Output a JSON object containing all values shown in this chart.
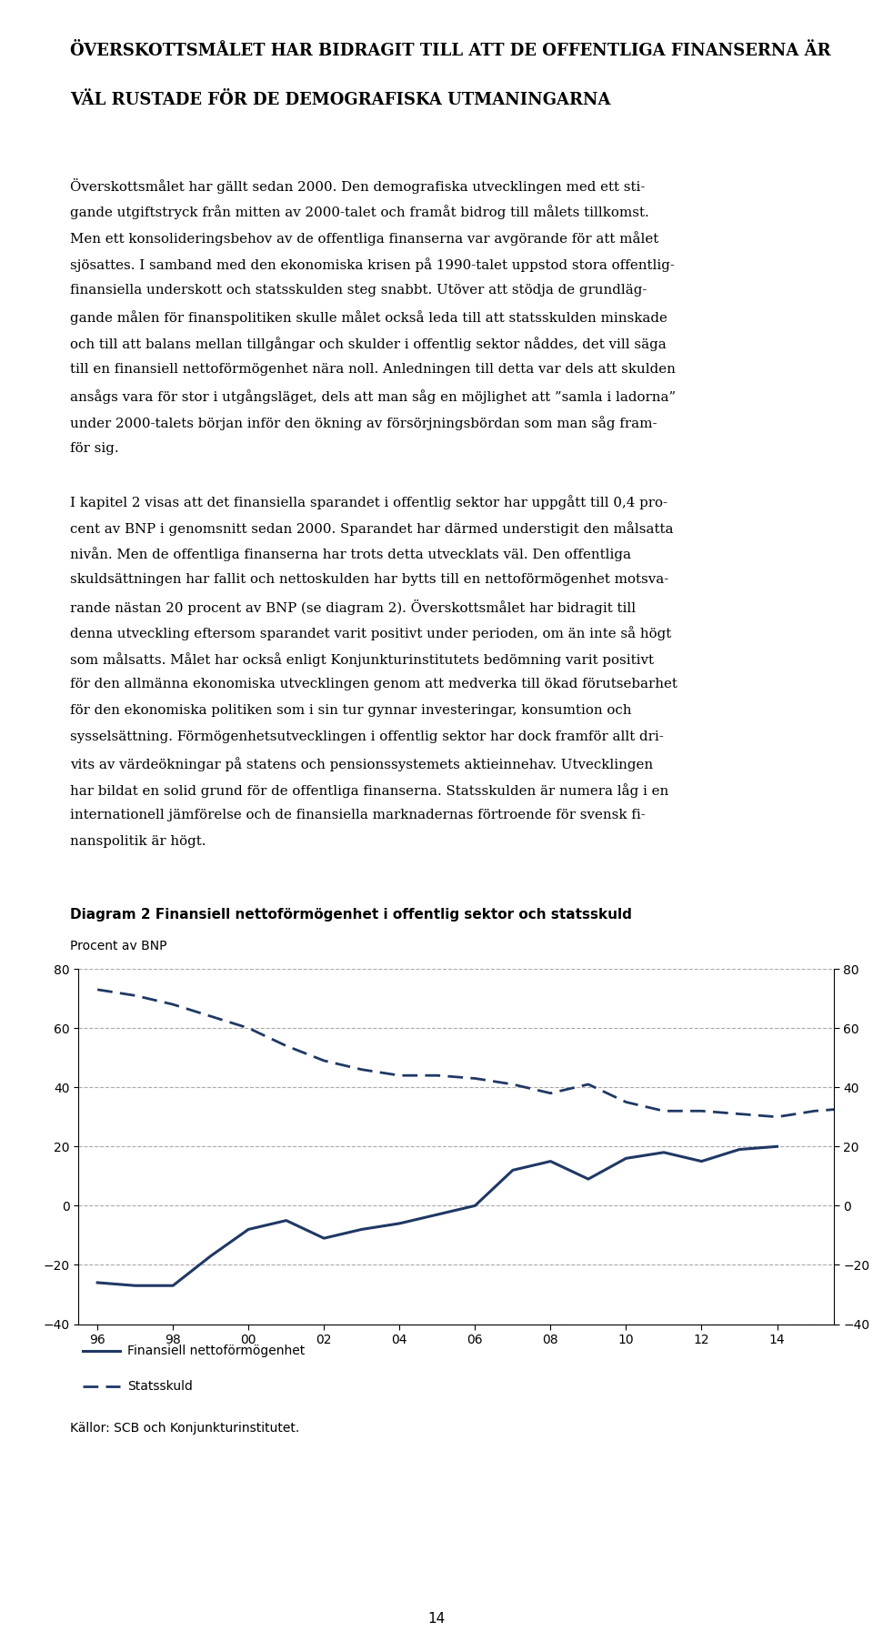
{
  "title_line1": "ÖVERSKOTTSMÅLET HAR BIDRAGIT TILL ATT DE OFFENTLIGA FINANSERNA ÄR",
  "title_line2": "VÄL RUSTADE FÖR DE DEMOGRAFISKA UTMANINGARNA",
  "body1_lines": [
    "Överskottsmålet har gällt sedan 2000. Den demografiska utvecklingen med ett sti-",
    "gande utgiftstryck från mitten av 2000-talet och framåt bidrog till målets tillkomst.",
    "Men ett konsolideringsbehov av de offentliga finanserna var avgörande för att målet",
    "sjösattes. I samband med den ekonomiska krisen på 1990-talet uppstod stora offentlig-",
    "finansiella underskott och statsskulden steg snabbt. Utöver att stödja de grundläg-",
    "gande målen för finanspolitiken skulle målet också leda till att statsskulden minskade",
    "och till att balans mellan tillgångar och skulder i offentlig sektor nåddes, det vill säga",
    "till en finansiell nettoförmögenhet nära noll. Anledningen till detta var dels att skulden",
    "ansågs vara för stor i utgångsläget, dels att man såg en möjlighet att ”samla i ladorna”",
    "under 2000-talets början inför den ökning av försörjningsbördan som man såg fram-",
    "för sig."
  ],
  "body2_lines": [
    "I kapitel 2 visas att det finansiella sparandet i offentlig sektor har uppgått till 0,4 pro-",
    "cent av BNP i genomsnitt sedan 2000. Sparandet har därmed understigit den målsatta",
    "nivån. Men de offentliga finanserna har trots detta utvecklats väl. Den offentliga",
    "skuldsättningen har fallit och nettoskulden har bytts till en nettoförmögenhet motsva-",
    "rande nästan 20 procent av BNP (se diagram 2). Överskottsmålet har bidragit till",
    "denna utveckling eftersom sparandet varit positivt under perioden, om än inte så högt",
    "som målsatts. Målet har också enligt Konjunkturinstitutets bedömning varit positivt",
    "för den allmänna ekonomiska utvecklingen genom att medverka till ökad förutsebarhet",
    "för den ekonomiska politiken som i sin tur gynnar investeringar, konsumtion och",
    "sysselsättning. Förmögenhetsutvecklingen i offentlig sektor har dock framför allt dri-",
    "vits av värdeökningar på statens och pensionssystemets aktieinnehav. Utvecklingen",
    "har bildat en solid grund för de offentliga finanserna. Statsskulden är numera låg i en",
    "internationell jämförelse och de finansiella marknadernas förtroende för svensk fi-",
    "nanspolitik är högt."
  ],
  "diagram_title": "Diagram 2 Finansiell nettoförmögenhet i offentlig sektor och statsskuld",
  "diagram_ylabel": "Procent av BNP",
  "x_labels": [
    "96",
    "98",
    "00",
    "02",
    "04",
    "06",
    "08",
    "10",
    "12",
    "14"
  ],
  "x_tick_positions": [
    1996,
    1998,
    2000,
    2002,
    2004,
    2006,
    2008,
    2010,
    2012,
    2014
  ],
  "x_values": [
    1996,
    1997,
    1998,
    1999,
    2000,
    2001,
    2002,
    2003,
    2004,
    2005,
    2006,
    2007,
    2008,
    2009,
    2010,
    2011,
    2012,
    2013,
    2014
  ],
  "net_wealth": [
    -26,
    -27,
    -27,
    -17,
    -8,
    -5,
    -11,
    -8,
    -6,
    -3,
    0,
    12,
    15,
    9,
    16,
    18,
    15,
    19,
    20
  ],
  "statsskuld": [
    73,
    71,
    68,
    64,
    60,
    54,
    49,
    46,
    44,
    44,
    43,
    41,
    38,
    41,
    35,
    32,
    32,
    31,
    30,
    32,
    33
  ],
  "statsskuld_x": [
    1996,
    1997,
    1998,
    1999,
    2000,
    2001,
    2002,
    2003,
    2004,
    2005,
    2006,
    2007,
    2008,
    2009,
    2010,
    2011,
    2012,
    2013,
    2014,
    2015,
    2016
  ],
  "line_color": "#1f3864",
  "ylim": [
    -40,
    80
  ],
  "yticks": [
    -40,
    -20,
    0,
    20,
    40,
    60,
    80
  ],
  "legend_net": "Finansiell nettoförmögenhet",
  "legend_stat": "Statsskuld",
  "source_text": "Källor: SCB och Konjunkturinstitutet.",
  "page_number": "14",
  "background_color": "#ffffff",
  "grid_color": "#aaaaaa",
  "title_fontsize": 13.0,
  "body_fontsize": 10.8,
  "chart_label_fontsize": 10.0
}
